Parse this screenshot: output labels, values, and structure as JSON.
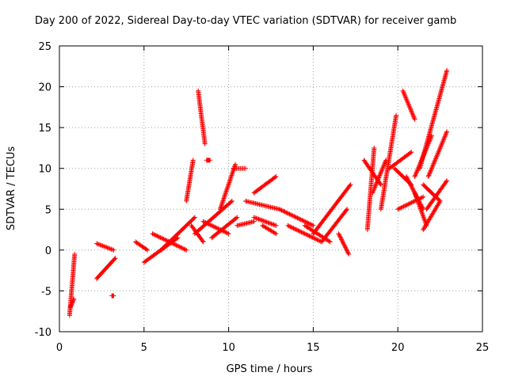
{
  "chart_data": {
    "type": "scatter",
    "title": "Day 200 of 2022, Sidereal Day-to-day VTEC variation (SDTVAR) for receiver gamb",
    "xlabel": "GPS time / hours",
    "ylabel": "SDTVAR / TECUs",
    "xlim": [
      0,
      25
    ],
    "ylim": [
      -10,
      25
    ],
    "xticks": [
      0,
      5,
      10,
      15,
      20,
      25
    ],
    "yticks": [
      -10,
      -5,
      0,
      5,
      10,
      15,
      20,
      25
    ],
    "grid": true,
    "marker": "+",
    "color": "#ff0000",
    "tracks": [
      {
        "x0": 0.6,
        "x1": 0.9,
        "y0": -8.0,
        "y1": -0.5
      },
      {
        "x0": 0.65,
        "x1": 0.85,
        "y0": -7.0,
        "y1": -6.0
      },
      {
        "x0": 2.2,
        "x1": 3.2,
        "y0": 0.8,
        "y1": 0.0
      },
      {
        "x0": 2.2,
        "x1": 3.3,
        "y0": -3.5,
        "y1": -1.0
      },
      {
        "x0": 3.1,
        "x1": 3.2,
        "y0": -5.6,
        "y1": -5.6
      },
      {
        "x0": 4.5,
        "x1": 5.2,
        "y0": 1.0,
        "y1": 0.0
      },
      {
        "x0": 5.0,
        "x1": 7.0,
        "y0": -1.5,
        "y1": 1.5
      },
      {
        "x0": 5.5,
        "x1": 7.5,
        "y0": 2.0,
        "y1": 0.0
      },
      {
        "x0": 6.0,
        "x1": 8.0,
        "y0": 0.0,
        "y1": 4.0
      },
      {
        "x0": 7.5,
        "x1": 7.9,
        "y0": 6.0,
        "y1": 11.0
      },
      {
        "x0": 8.2,
        "x1": 8.6,
        "y0": 19.5,
        "y1": 13.0
      },
      {
        "x0": 8.7,
        "x1": 8.9,
        "y0": 11.0,
        "y1": 11.0
      },
      {
        "x0": 7.8,
        "x1": 8.5,
        "y0": 3.0,
        "y1": 1.0
      },
      {
        "x0": 8.5,
        "x1": 10.0,
        "y0": 3.5,
        "y1": 2.0
      },
      {
        "x0": 9.0,
        "x1": 10.5,
        "y0": 1.5,
        "y1": 4.0
      },
      {
        "x0": 9.5,
        "x1": 10.4,
        "y0": 5.0,
        "y1": 10.5
      },
      {
        "x0": 10.3,
        "x1": 11.0,
        "y0": 10.0,
        "y1": 10.0
      },
      {
        "x0": 8.0,
        "x1": 10.2,
        "y0": 2.0,
        "y1": 6.0
      },
      {
        "x0": 10.5,
        "x1": 11.5,
        "y0": 3.0,
        "y1": 3.5
      },
      {
        "x0": 11.5,
        "x1": 12.8,
        "y0": 7.0,
        "y1": 9.0
      },
      {
        "x0": 11.0,
        "x1": 13.0,
        "y0": 6.0,
        "y1": 5.0
      },
      {
        "x0": 11.5,
        "x1": 12.8,
        "y0": 4.0,
        "y1": 3.0
      },
      {
        "x0": 12.0,
        "x1": 12.8,
        "y0": 3.0,
        "y1": 2.0
      },
      {
        "x0": 13.0,
        "x1": 15.0,
        "y0": 5.0,
        "y1": 3.0
      },
      {
        "x0": 13.5,
        "x1": 15.5,
        "y0": 3.0,
        "y1": 1.0
      },
      {
        "x0": 14.5,
        "x1": 16.0,
        "y0": 3.0,
        "y1": 1.0
      },
      {
        "x0": 15.0,
        "x1": 17.2,
        "y0": 2.0,
        "y1": 8.0
      },
      {
        "x0": 15.5,
        "x1": 17.0,
        "y0": 1.0,
        "y1": 5.0
      },
      {
        "x0": 16.5,
        "x1": 17.1,
        "y0": 2.0,
        "y1": -0.5
      },
      {
        "x0": 18.2,
        "x1": 18.6,
        "y0": 2.5,
        "y1": 12.5
      },
      {
        "x0": 18.0,
        "x1": 19.0,
        "y0": 11.0,
        "y1": 8.0
      },
      {
        "x0": 18.5,
        "x1": 19.3,
        "y0": 7.0,
        "y1": 11.0
      },
      {
        "x0": 19.0,
        "x1": 19.9,
        "y0": 5.0,
        "y1": 16.5
      },
      {
        "x0": 19.5,
        "x1": 20.8,
        "y0": 10.0,
        "y1": 12.0
      },
      {
        "x0": 19.8,
        "x1": 20.8,
        "y0": 10.0,
        "y1": 8.0
      },
      {
        "x0": 20.3,
        "x1": 21.0,
        "y0": 19.5,
        "y1": 16.0
      },
      {
        "x0": 20.0,
        "x1": 21.5,
        "y0": 5.0,
        "y1": 6.5
      },
      {
        "x0": 20.5,
        "x1": 21.5,
        "y0": 9.0,
        "y1": 5.0
      },
      {
        "x0": 21.0,
        "x1": 21.7,
        "y0": 7.0,
        "y1": 3.0
      },
      {
        "x0": 21.5,
        "x1": 22.5,
        "y0": 2.5,
        "y1": 6.0
      },
      {
        "x0": 21.3,
        "x1": 22.9,
        "y0": 10.0,
        "y1": 22.0
      },
      {
        "x0": 21.8,
        "x1": 22.9,
        "y0": 9.0,
        "y1": 14.5
      },
      {
        "x0": 21.0,
        "x1": 22.0,
        "y0": 9.0,
        "y1": 14.0
      },
      {
        "x0": 21.7,
        "x1": 22.9,
        "y0": 5.0,
        "y1": 8.5
      },
      {
        "x0": 21.5,
        "x1": 22.5,
        "y0": 8.0,
        "y1": 6.0
      }
    ]
  }
}
